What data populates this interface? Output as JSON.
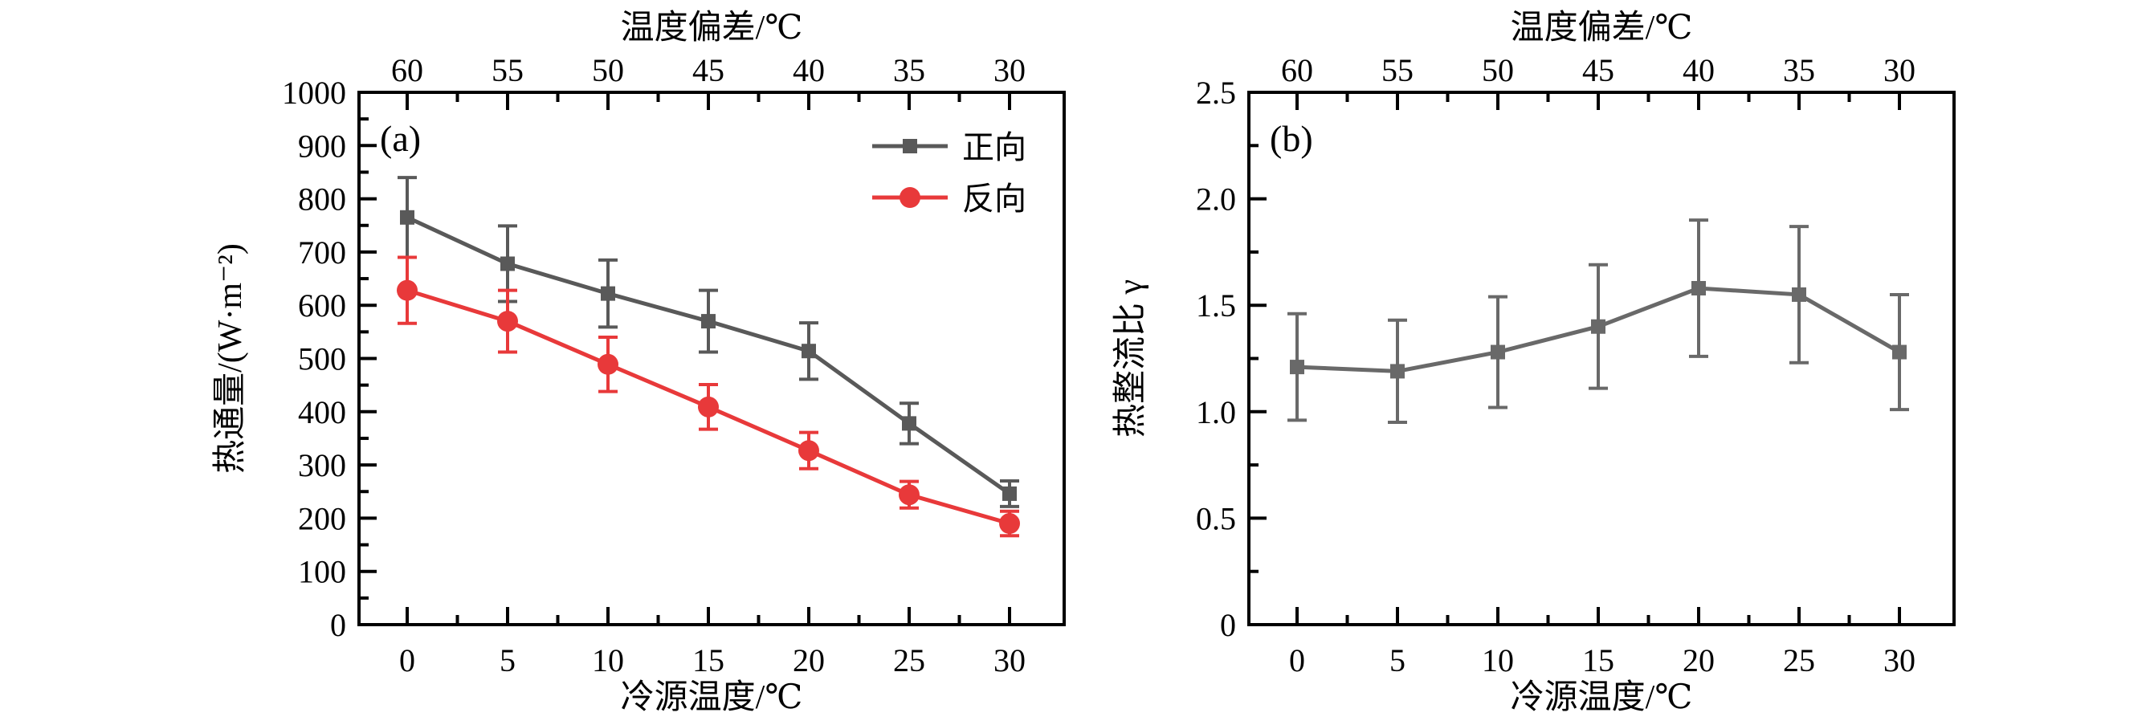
{
  "figure": {
    "background": "#ffffff",
    "axis_color": "#000000",
    "tick_label_color": "#000000",
    "panel_labels": [
      "(a)",
      "(b)"
    ]
  },
  "chart_data": [
    {
      "id": "a",
      "type": "line",
      "panel_label": "(a)",
      "top_axis_label": "温度偏差/℃",
      "top_axis_ticklabels": [
        "60",
        "55",
        "50",
        "45",
        "40",
        "35",
        "30"
      ],
      "xlabel": "冷源温度/℃",
      "ylabel": "热通量/(W·m⁻²)",
      "x": [
        0,
        5,
        10,
        15,
        20,
        25,
        30
      ],
      "x_ticklabels": [
        "0",
        "5",
        "10",
        "15",
        "20",
        "25",
        "30"
      ],
      "y_ticklabels": [
        "0",
        "100",
        "200",
        "300",
        "400",
        "500",
        "600",
        "700",
        "800",
        "900",
        "1000"
      ],
      "ylim": [
        0,
        1000
      ],
      "y_major_step": 100,
      "y_minor_step": 50,
      "x_major_step": 5,
      "x_minor_step": 2.5,
      "grid": false,
      "legend": {
        "position": "top-right",
        "items": [
          {
            "label": "正向",
            "marker": "square",
            "color": "#595959"
          },
          {
            "label": "反向",
            "marker": "circle",
            "color": "#e8393a"
          }
        ]
      },
      "series": [
        {
          "name": "正向",
          "marker": "square",
          "color": "#595959",
          "values": [
            765,
            678,
            622,
            570,
            514,
            378,
            246
          ],
          "errors": [
            75,
            71,
            63,
            58,
            53,
            38,
            24
          ]
        },
        {
          "name": "反向",
          "marker": "circle",
          "color": "#e8393a",
          "values": [
            628,
            570,
            489,
            409,
            327,
            244,
            190
          ],
          "errors": [
            62,
            58,
            51,
            42,
            34,
            25,
            23
          ]
        }
      ]
    },
    {
      "id": "b",
      "type": "line",
      "panel_label": "(b)",
      "top_axis_label": "温度偏差/℃",
      "top_axis_ticklabels": [
        "60",
        "55",
        "50",
        "45",
        "40",
        "35",
        "30"
      ],
      "xlabel": "冷源温度/℃",
      "ylabel": "热整流比 γ",
      "x": [
        0,
        5,
        10,
        15,
        20,
        25,
        30
      ],
      "x_ticklabels": [
        "0",
        "5",
        "10",
        "15",
        "20",
        "25",
        "30"
      ],
      "y_ticklabels": [
        "0",
        "0.5",
        "1.0",
        "1.5",
        "2.0",
        "2.5"
      ],
      "ylim": [
        0,
        2.5
      ],
      "y_major_step": 0.5,
      "y_minor_step": 0.25,
      "x_major_step": 5,
      "x_minor_step": 2.5,
      "grid": false,
      "legend": null,
      "series": [
        {
          "name": "热整流比",
          "marker": "square",
          "color": "#696969",
          "values": [
            1.21,
            1.19,
            1.28,
            1.4,
            1.58,
            1.55,
            1.28
          ],
          "errors": [
            0.25,
            0.24,
            0.26,
            0.29,
            0.32,
            0.32,
            0.27
          ]
        }
      ]
    }
  ]
}
